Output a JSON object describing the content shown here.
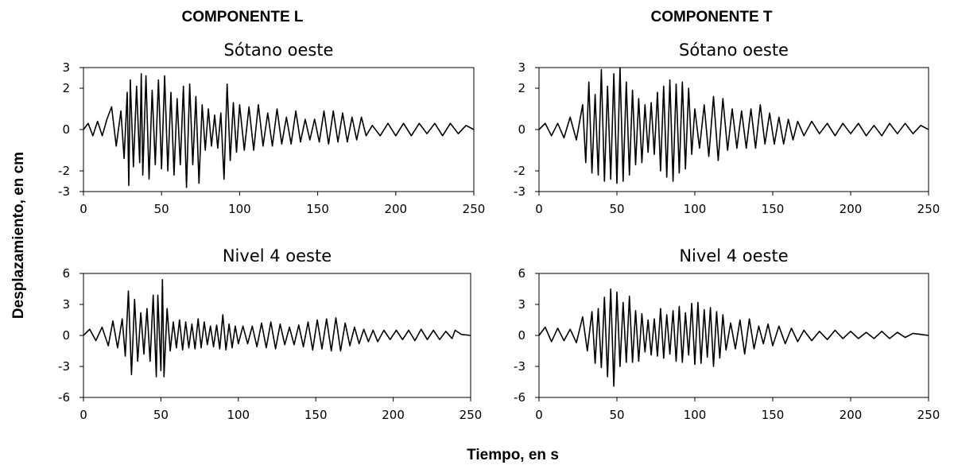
{
  "figure": {
    "column_headers": [
      "COMPONENTE L",
      "COMPONENTE T"
    ],
    "xlabel": "Tiempo, en s",
    "ylabel": "Desplazamiento, en cm"
  },
  "colors": {
    "line": "#000000",
    "axes": "#000000",
    "background": "#ffffff"
  },
  "chart_data": [
    {
      "type": "line",
      "column": "COMPONENTE L",
      "title": "Sótano oeste",
      "xlim": [
        0,
        250
      ],
      "ylim": [
        -3,
        3
      ],
      "xticks": [
        0,
        50,
        100,
        150,
        200,
        250
      ],
      "yticks": [
        3,
        2,
        0,
        -2,
        -3
      ],
      "grid": false,
      "series": [
        {
          "x": [
            0,
            3,
            6,
            9,
            12,
            15,
            18,
            21,
            24,
            26,
            28,
            29,
            30,
            32,
            34,
            36,
            37,
            38,
            40,
            42,
            44,
            46,
            48,
            50,
            52,
            54,
            56,
            58,
            60,
            62,
            64,
            66,
            68,
            70,
            72,
            74,
            76,
            78,
            80,
            82,
            84,
            86,
            88,
            90,
            92,
            94,
            96,
            98,
            100,
            103,
            106,
            109,
            112,
            115,
            118,
            121,
            124,
            127,
            130,
            133,
            136,
            139,
            142,
            145,
            148,
            151,
            154,
            157,
            160,
            163,
            166,
            169,
            172,
            175,
            178,
            181,
            185,
            190,
            195,
            200,
            205,
            210,
            215,
            220,
            225,
            230,
            235,
            240,
            245,
            250
          ],
          "y": [
            0,
            0.3,
            -0.3,
            0.4,
            -0.3,
            0.5,
            1.1,
            -0.8,
            0.9,
            -1.4,
            1.8,
            -2.7,
            2.4,
            -1.8,
            2.1,
            -1.6,
            2.7,
            -2.2,
            2.6,
            -2.4,
            1.9,
            -1.7,
            2.4,
            -1.9,
            2.6,
            -2.0,
            1.8,
            -2.2,
            1.5,
            -1.7,
            2.1,
            -2.8,
            2.2,
            -1.7,
            1.6,
            -2.6,
            1.2,
            -1.0,
            1.0,
            -0.8,
            0.7,
            -0.9,
            0.8,
            -2.4,
            2.2,
            -1.5,
            1.3,
            -1.1,
            1.2,
            -1.0,
            1.1,
            -1.0,
            1.2,
            -0.8,
            0.8,
            -0.8,
            1.0,
            -0.7,
            0.6,
            -0.7,
            0.9,
            -0.6,
            0.5,
            -0.5,
            0.5,
            -0.6,
            0.9,
            -0.7,
            0.9,
            -0.6,
            0.8,
            -0.6,
            0.6,
            -0.5,
            0.6,
            -0.3,
            0.2,
            -0.3,
            0.3,
            -0.3,
            0.3,
            -0.3,
            0.3,
            -0.2,
            0.3,
            -0.3,
            0.3,
            -0.2,
            0.2,
            0
          ]
        }
      ]
    },
    {
      "type": "line",
      "column": "COMPONENTE T",
      "title": "Sótano oeste",
      "xlim": [
        0,
        250
      ],
      "ylim": [
        -3,
        3
      ],
      "xticks": [
        0,
        50,
        100,
        150,
        200,
        250
      ],
      "yticks": [
        3,
        2,
        0,
        -2,
        -3
      ],
      "grid": false,
      "series": [
        {
          "x": [
            0,
            4,
            8,
            12,
            16,
            20,
            24,
            28,
            30,
            32,
            34,
            36,
            38,
            40,
            42,
            44,
            46,
            48,
            50,
            52,
            54,
            56,
            58,
            60,
            62,
            64,
            66,
            68,
            70,
            72,
            74,
            76,
            78,
            80,
            82,
            84,
            86,
            88,
            90,
            92,
            94,
            96,
            98,
            100,
            103,
            106,
            109,
            112,
            115,
            118,
            121,
            124,
            127,
            130,
            133,
            136,
            139,
            142,
            145,
            148,
            151,
            154,
            157,
            160,
            163,
            166,
            170,
            175,
            180,
            185,
            190,
            195,
            200,
            205,
            210,
            215,
            220,
            225,
            230,
            235,
            240,
            245,
            250
          ],
          "y": [
            0,
            0.3,
            -0.3,
            0.3,
            -0.4,
            0.6,
            -0.5,
            1.2,
            -1.6,
            2.3,
            -2.1,
            1.7,
            -2.2,
            2.9,
            -2.5,
            2.1,
            -2.4,
            2.7,
            -2.6,
            3.0,
            -2.5,
            2.3,
            -2.2,
            1.9,
            -1.7,
            1.5,
            -1.6,
            1.2,
            -1.1,
            1.3,
            -1.2,
            1.8,
            -2.0,
            2.1,
            -2.3,
            2.4,
            -2.5,
            2.2,
            -2.1,
            2.3,
            -1.9,
            2.0,
            -1.2,
            1.0,
            -0.9,
            1.2,
            -1.3,
            1.6,
            -1.5,
            1.5,
            -1.0,
            1.0,
            -0.9,
            0.9,
            -0.9,
            1.0,
            -0.9,
            1.2,
            -0.7,
            0.8,
            -0.7,
            0.6,
            -0.7,
            0.5,
            -0.5,
            0.4,
            -0.3,
            0.4,
            -0.2,
            0.3,
            -0.3,
            0.3,
            -0.2,
            0.3,
            -0.3,
            0.2,
            -0.3,
            0.3,
            -0.2,
            0.3,
            -0.2,
            0.2,
            0
          ]
        }
      ]
    },
    {
      "type": "line",
      "column": "COMPONENTE L",
      "title": "Nivel 4 oeste",
      "xlim": [
        0,
        250
      ],
      "ylim": [
        -6,
        6
      ],
      "xticks": [
        0,
        50,
        100,
        150,
        200,
        250
      ],
      "yticks": [
        6,
        3,
        0,
        -3,
        -6
      ],
      "grid": false,
      "series": [
        {
          "x": [
            0,
            4,
            8,
            12,
            16,
            19,
            22,
            25,
            27,
            29,
            31,
            33,
            35,
            37,
            39,
            41,
            43,
            45,
            47,
            48,
            50,
            51,
            52,
            54,
            56,
            58,
            60,
            62,
            64,
            66,
            68,
            70,
            72,
            74,
            76,
            78,
            80,
            82,
            84,
            86,
            88,
            90,
            92,
            94,
            96,
            98,
            100,
            103,
            106,
            109,
            112,
            115,
            118,
            121,
            124,
            127,
            130,
            133,
            136,
            139,
            142,
            145,
            148,
            151,
            154,
            157,
            160,
            163,
            166,
            169,
            172,
            175,
            178,
            181,
            184,
            187,
            190,
            194,
            198,
            202,
            206,
            210,
            214,
            218,
            222,
            226,
            230,
            234,
            238,
            240,
            244,
            250
          ],
          "y": [
            0,
            0.6,
            -0.5,
            0.8,
            -1.0,
            1.4,
            -1.2,
            1.6,
            -2.0,
            4.3,
            -3.8,
            3.5,
            -2.5,
            2.2,
            -1.8,
            2.6,
            -2.5,
            3.9,
            -4.0,
            3.9,
            -3.4,
            5.4,
            -4.0,
            2.6,
            -1.5,
            1.3,
            -1.2,
            1.5,
            -1.4,
            1.3,
            -1.2,
            1.1,
            -1.3,
            1.6,
            -1.2,
            1.3,
            -0.9,
            0.9,
            -1.1,
            1.0,
            -1.3,
            2.0,
            -1.4,
            1.1,
            -1.2,
            0.9,
            -0.8,
            0.9,
            -0.8,
            0.9,
            -1.1,
            1.2,
            -1.2,
            1.3,
            -1.3,
            1.1,
            -0.9,
            0.8,
            -0.9,
            1.0,
            -1.1,
            1.3,
            -1.4,
            1.5,
            -1.3,
            1.6,
            -1.5,
            1.7,
            -1.5,
            1.2,
            -1.0,
            0.8,
            -0.8,
            0.6,
            -0.6,
            0.5,
            -0.6,
            0.5,
            -0.4,
            0.5,
            -0.4,
            0.5,
            -0.5,
            0.6,
            -0.4,
            0.5,
            -0.4,
            0.4,
            -0.3,
            0.5,
            0.1,
            0
          ]
        }
      ]
    },
    {
      "type": "line",
      "column": "COMPONENTE T",
      "title": "Nivel 4 oeste",
      "xlim": [
        0,
        250
      ],
      "ylim": [
        -6,
        6
      ],
      "xticks": [
        0,
        50,
        100,
        150,
        200,
        250
      ],
      "yticks": [
        6,
        3,
        0,
        -3,
        -6
      ],
      "grid": false,
      "series": [
        {
          "x": [
            0,
            4,
            8,
            12,
            16,
            20,
            24,
            28,
            31,
            34,
            36,
            38,
            40,
            42,
            44,
            46,
            48,
            50,
            52,
            54,
            56,
            58,
            60,
            62,
            64,
            66,
            68,
            70,
            72,
            74,
            76,
            78,
            80,
            82,
            84,
            86,
            88,
            90,
            92,
            94,
            96,
            98,
            100,
            102,
            104,
            106,
            108,
            110,
            112,
            114,
            116,
            118,
            120,
            123,
            126,
            129,
            132,
            135,
            138,
            141,
            144,
            147,
            150,
            154,
            158,
            162,
            166,
            170,
            175,
            180,
            185,
            190,
            195,
            200,
            205,
            210,
            215,
            220,
            225,
            230,
            235,
            240,
            245,
            250
          ],
          "y": [
            0,
            0.8,
            -0.6,
            0.7,
            -0.5,
            0.6,
            -0.7,
            1.8,
            -1.5,
            2.3,
            -2.7,
            2.6,
            -3.1,
            3.7,
            -4.0,
            4.5,
            -4.9,
            4.2,
            -3.0,
            3.2,
            -2.6,
            3.8,
            -2.6,
            2.4,
            -2.5,
            2.1,
            -1.6,
            1.5,
            -1.9,
            1.6,
            -2.0,
            2.6,
            -2.2,
            2.0,
            -1.8,
            2.4,
            -2.5,
            2.8,
            -2.6,
            2.2,
            -1.9,
            3.1,
            -2.8,
            3.2,
            -2.7,
            2.5,
            -2.1,
            2.7,
            -3.0,
            2.3,
            -2.2,
            2.0,
            -1.4,
            1.2,
            -1.3,
            1.5,
            -1.8,
            1.6,
            -1.3,
            0.9,
            -0.8,
            1.1,
            -1.0,
            0.9,
            -0.8,
            0.7,
            -0.6,
            0.5,
            -0.5,
            0.4,
            -0.4,
            0.5,
            -0.3,
            0.4,
            -0.3,
            0.3,
            -0.3,
            0.4,
            -0.3,
            0.3,
            -0.2,
            0.2,
            0.1,
            0
          ]
        }
      ]
    }
  ]
}
